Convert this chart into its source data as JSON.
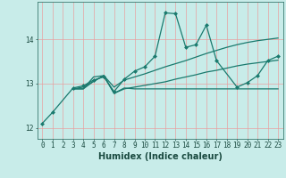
{
  "xlabel": "Humidex (Indice chaleur)",
  "background_color": "#c8ece9",
  "grid_color": "#e8a0a0",
  "line_color": "#1a7a6e",
  "xlim": [
    -0.5,
    23.5
  ],
  "ylim": [
    11.75,
    14.85
  ],
  "yticks": [
    12,
    13,
    14
  ],
  "xticks": [
    0,
    1,
    2,
    3,
    4,
    5,
    6,
    7,
    8,
    9,
    10,
    11,
    12,
    13,
    14,
    15,
    16,
    17,
    18,
    19,
    20,
    21,
    22,
    23
  ],
  "series1_x": [
    0,
    1,
    3,
    4,
    5,
    6,
    7,
    8,
    9,
    10,
    11,
    12,
    13,
    14,
    15,
    16,
    17,
    19,
    20,
    21,
    22,
    23
  ],
  "series1_y": [
    12.1,
    12.35,
    12.9,
    12.95,
    13.08,
    13.15,
    12.82,
    13.1,
    13.28,
    13.38,
    13.62,
    14.6,
    14.58,
    13.82,
    13.88,
    14.32,
    13.52,
    12.92,
    13.02,
    13.18,
    13.52,
    13.62
  ],
  "series2_x": [
    3,
    4,
    5,
    6,
    7,
    8,
    9,
    10,
    11,
    12,
    13,
    14,
    15,
    16,
    17,
    18,
    19,
    20,
    21,
    22,
    23
  ],
  "series2_y": [
    12.88,
    12.88,
    13.15,
    13.18,
    12.78,
    12.9,
    12.88,
    12.88,
    12.88,
    12.88,
    12.88,
    12.88,
    12.88,
    12.88,
    12.88,
    12.88,
    12.88,
    12.88,
    12.88,
    12.88,
    12.88
  ],
  "series3_x": [
    3,
    4,
    5,
    6,
    7,
    8,
    9,
    10,
    11,
    12,
    13,
    14,
    15,
    16,
    17,
    18,
    19,
    20,
    21,
    22,
    23
  ],
  "series3_y": [
    12.88,
    12.92,
    13.05,
    13.18,
    12.92,
    13.08,
    13.15,
    13.22,
    13.3,
    13.38,
    13.45,
    13.52,
    13.6,
    13.68,
    13.75,
    13.82,
    13.88,
    13.93,
    13.97,
    14.0,
    14.03
  ],
  "series4_x": [
    3,
    4,
    5,
    6,
    7,
    8,
    9,
    10,
    11,
    12,
    13,
    14,
    15,
    16,
    17,
    18,
    19,
    20,
    21,
    22,
    23
  ],
  "series4_y": [
    12.88,
    12.88,
    13.05,
    13.18,
    12.78,
    12.88,
    12.92,
    12.96,
    13.0,
    13.04,
    13.1,
    13.15,
    13.2,
    13.26,
    13.3,
    13.35,
    13.4,
    13.44,
    13.47,
    13.5,
    13.53
  ]
}
